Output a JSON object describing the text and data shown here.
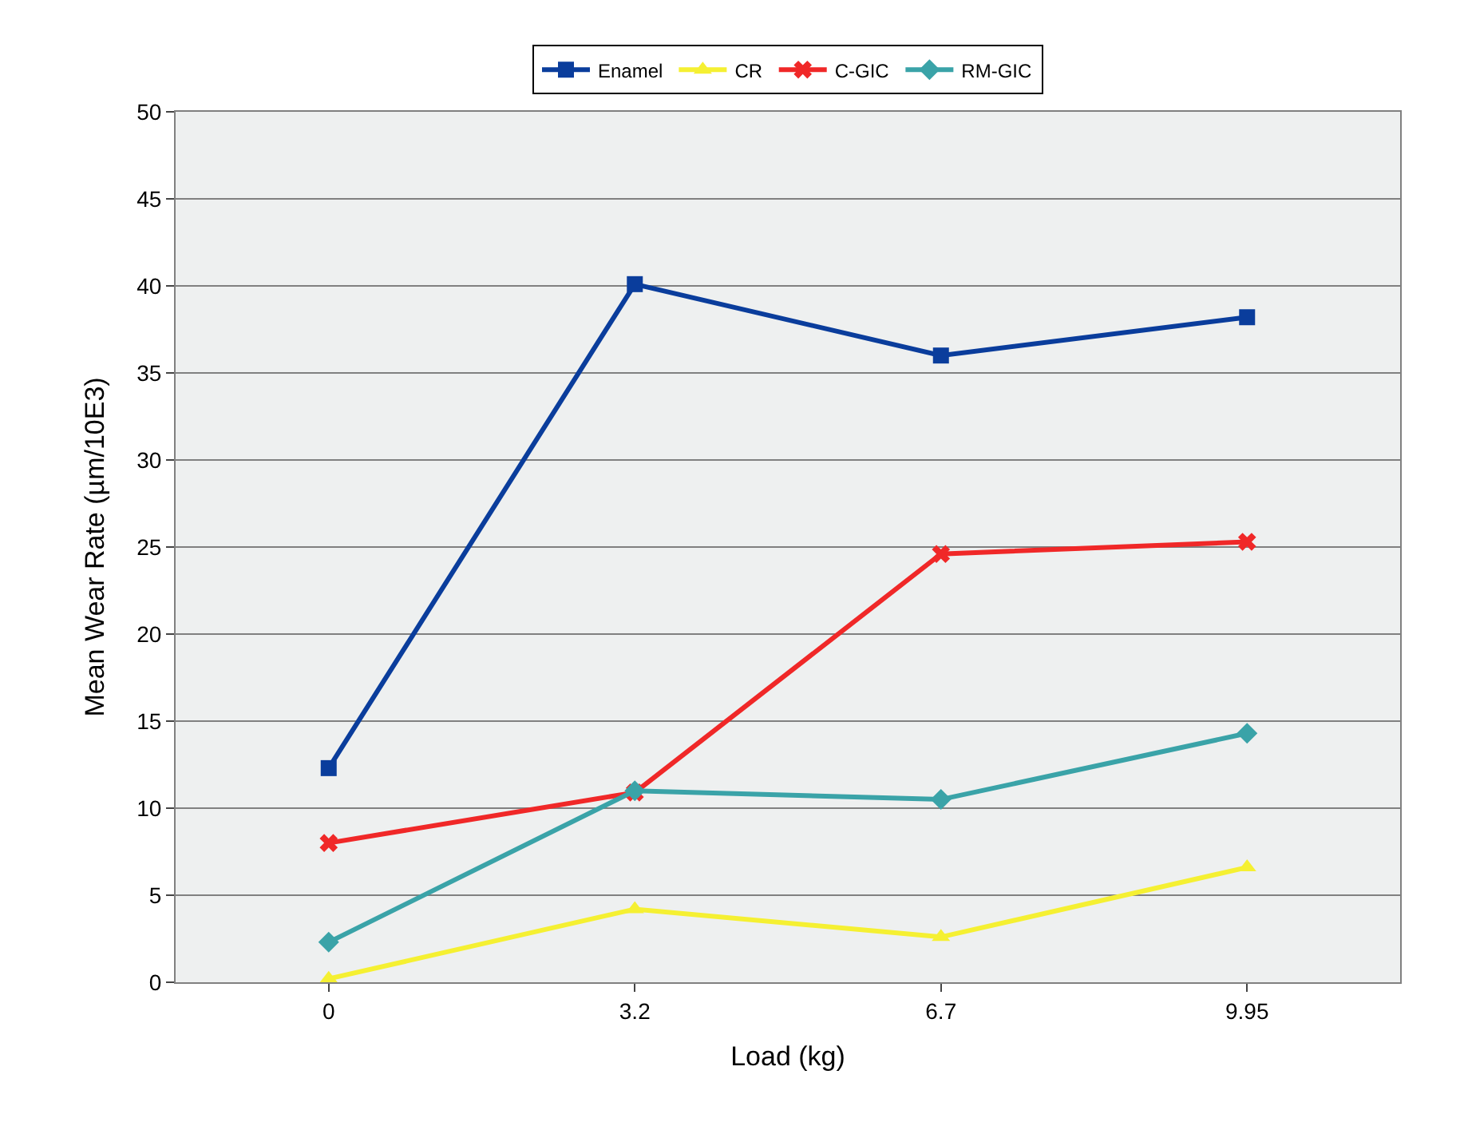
{
  "chart_data": {
    "type": "line",
    "xlabel": "Load (kg)",
    "ylabel": "Mean Wear Rate (µm/10E3)",
    "categories": [
      "0",
      "3.2",
      "6.7",
      "9.95"
    ],
    "series": [
      {
        "name": "Enamel",
        "color": "#0a3d9c",
        "marker": "square",
        "values": [
          12.3,
          40.1,
          36.0,
          38.2
        ]
      },
      {
        "name": "CR",
        "color": "#f5f032",
        "marker": "triangle",
        "values": [
          0.2,
          4.2,
          2.6,
          6.6
        ]
      },
      {
        "name": "C-GIC",
        "color": "#f02828",
        "marker": "cross",
        "values": [
          8.0,
          10.9,
          24.6,
          25.3
        ]
      },
      {
        "name": "RM-GIC",
        "color": "#3aa3a8",
        "marker": "diamond",
        "values": [
          2.3,
          11.0,
          10.5,
          14.3
        ]
      }
    ],
    "ylim": [
      0,
      50
    ],
    "yticks": [
      0,
      5,
      10,
      15,
      20,
      25,
      30,
      35,
      40,
      45,
      50
    ],
    "grid": "y",
    "legend": "top",
    "line_style": "solid"
  }
}
